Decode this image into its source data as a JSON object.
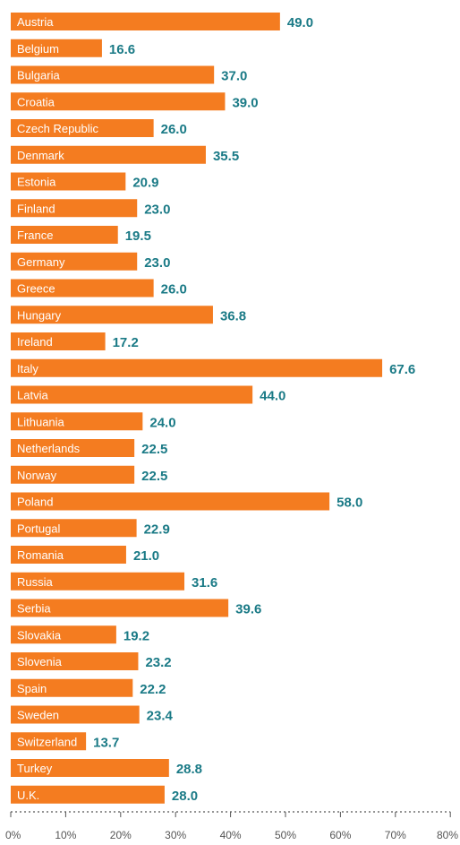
{
  "colors": {
    "bar": "#f47c20",
    "value_text": "#1a7a86",
    "axis": "#555555"
  },
  "chart_data": {
    "type": "bar",
    "orientation": "horizontal",
    "categories": [
      "Austria",
      "Belgium",
      "Bulgaria",
      "Croatia",
      "Czech Republic",
      "Denmark",
      "Estonia",
      "Finland",
      "France",
      "Germany",
      "Greece",
      "Hungary",
      "Ireland",
      "Italy",
      "Latvia",
      "Lithuania",
      "Netherlands",
      "Norway",
      "Poland",
      "Portugal",
      "Romania",
      "Russia",
      "Serbia",
      "Slovakia",
      "Slovenia",
      "Spain",
      "Sweden",
      "Switzerland",
      "Turkey",
      "U.K."
    ],
    "values": [
      49.0,
      16.6,
      37.0,
      39.0,
      26.0,
      35.5,
      20.9,
      23.0,
      19.5,
      23.0,
      26.0,
      36.8,
      17.2,
      67.6,
      44.0,
      24.0,
      22.5,
      22.5,
      58.0,
      22.9,
      21.0,
      31.6,
      39.6,
      19.2,
      23.2,
      22.2,
      23.4,
      13.7,
      28.8,
      28.0
    ],
    "value_labels": [
      "49.0",
      "16.6",
      "37.0",
      "39.0",
      "26.0",
      "35.5",
      "20.9",
      "23.0",
      "19.5",
      "23.0",
      "26.0",
      "36.8",
      "17.2",
      "67.6",
      "44.0",
      "24.0",
      "22.5",
      "22.5",
      "58.0",
      "22.9",
      "21.0",
      "31.6",
      "39.6",
      "19.2",
      "23.2",
      "22.2",
      "23.4",
      "13.7",
      "28.8",
      "28.0"
    ],
    "x_ticks": [
      "0%",
      "10%",
      "20%",
      "30%",
      "40%",
      "50%",
      "60%",
      "70%",
      "80%"
    ],
    "xlim": [
      0,
      80
    ],
    "title": "",
    "xlabel": "",
    "ylabel": "",
    "grid": false,
    "legend": "none"
  }
}
